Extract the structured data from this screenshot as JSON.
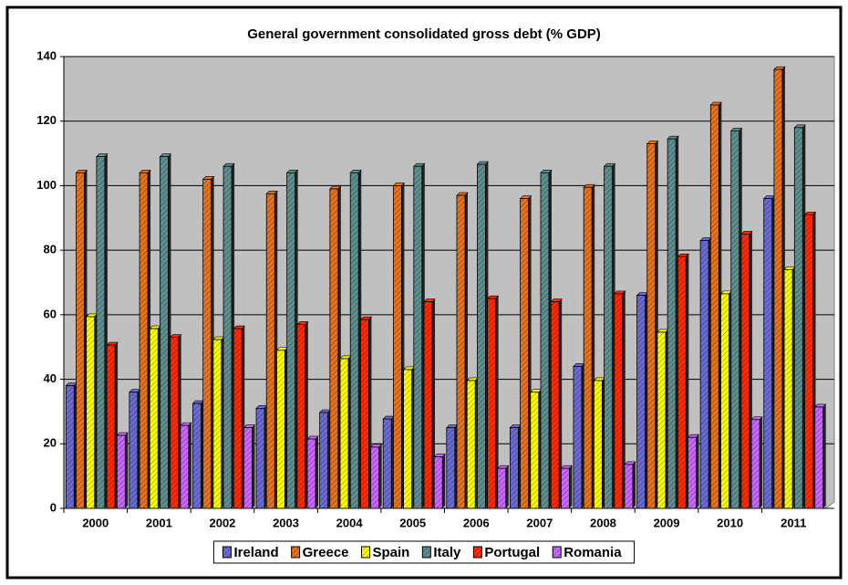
{
  "chart_data": {
    "type": "bar",
    "title": "General government consolidated gross debt (% GDP)",
    "categories": [
      "2000",
      "2001",
      "2002",
      "2003",
      "2004",
      "2005",
      "2006",
      "2007",
      "2008",
      "2009",
      "2010",
      "2011"
    ],
    "series": [
      {
        "name": "Ireland",
        "color": "#6b6bd6",
        "values": [
          38,
          36,
          32.5,
          31,
          29.7,
          27.7,
          25,
          25,
          44,
          66,
          83,
          96
        ]
      },
      {
        "name": "Greece",
        "color": "#e8731e",
        "values": [
          104,
          104,
          102,
          97.5,
          99,
          100,
          97,
          96,
          99.5,
          113,
          125,
          136
        ]
      },
      {
        "name": "Spain",
        "color": "#ffff00",
        "values": [
          59.4,
          55.7,
          52.3,
          49,
          46.4,
          43,
          39.6,
          36,
          39.6,
          54.6,
          66.5,
          74
        ]
      },
      {
        "name": "Italy",
        "color": "#5f8f8f",
        "values": [
          109,
          109,
          106,
          104,
          104,
          106,
          106.6,
          104,
          106,
          114.5,
          117,
          118
        ]
      },
      {
        "name": "Portugal",
        "color": "#ff2a00",
        "values": [
          50.6,
          53,
          55.7,
          57,
          58.5,
          64,
          65,
          64,
          66.5,
          78,
          85,
          91
        ]
      },
      {
        "name": "Romania",
        "color": "#cc66ff",
        "values": [
          22.6,
          25.7,
          25,
          21.5,
          19,
          16,
          12.4,
          12.4,
          13.6,
          22,
          27.5,
          31.4
        ]
      }
    ],
    "ylim": [
      0,
      140
    ],
    "yticks": [
      0,
      20,
      40,
      60,
      80,
      100,
      120,
      140
    ],
    "grid": true,
    "legend": "bottom"
  }
}
